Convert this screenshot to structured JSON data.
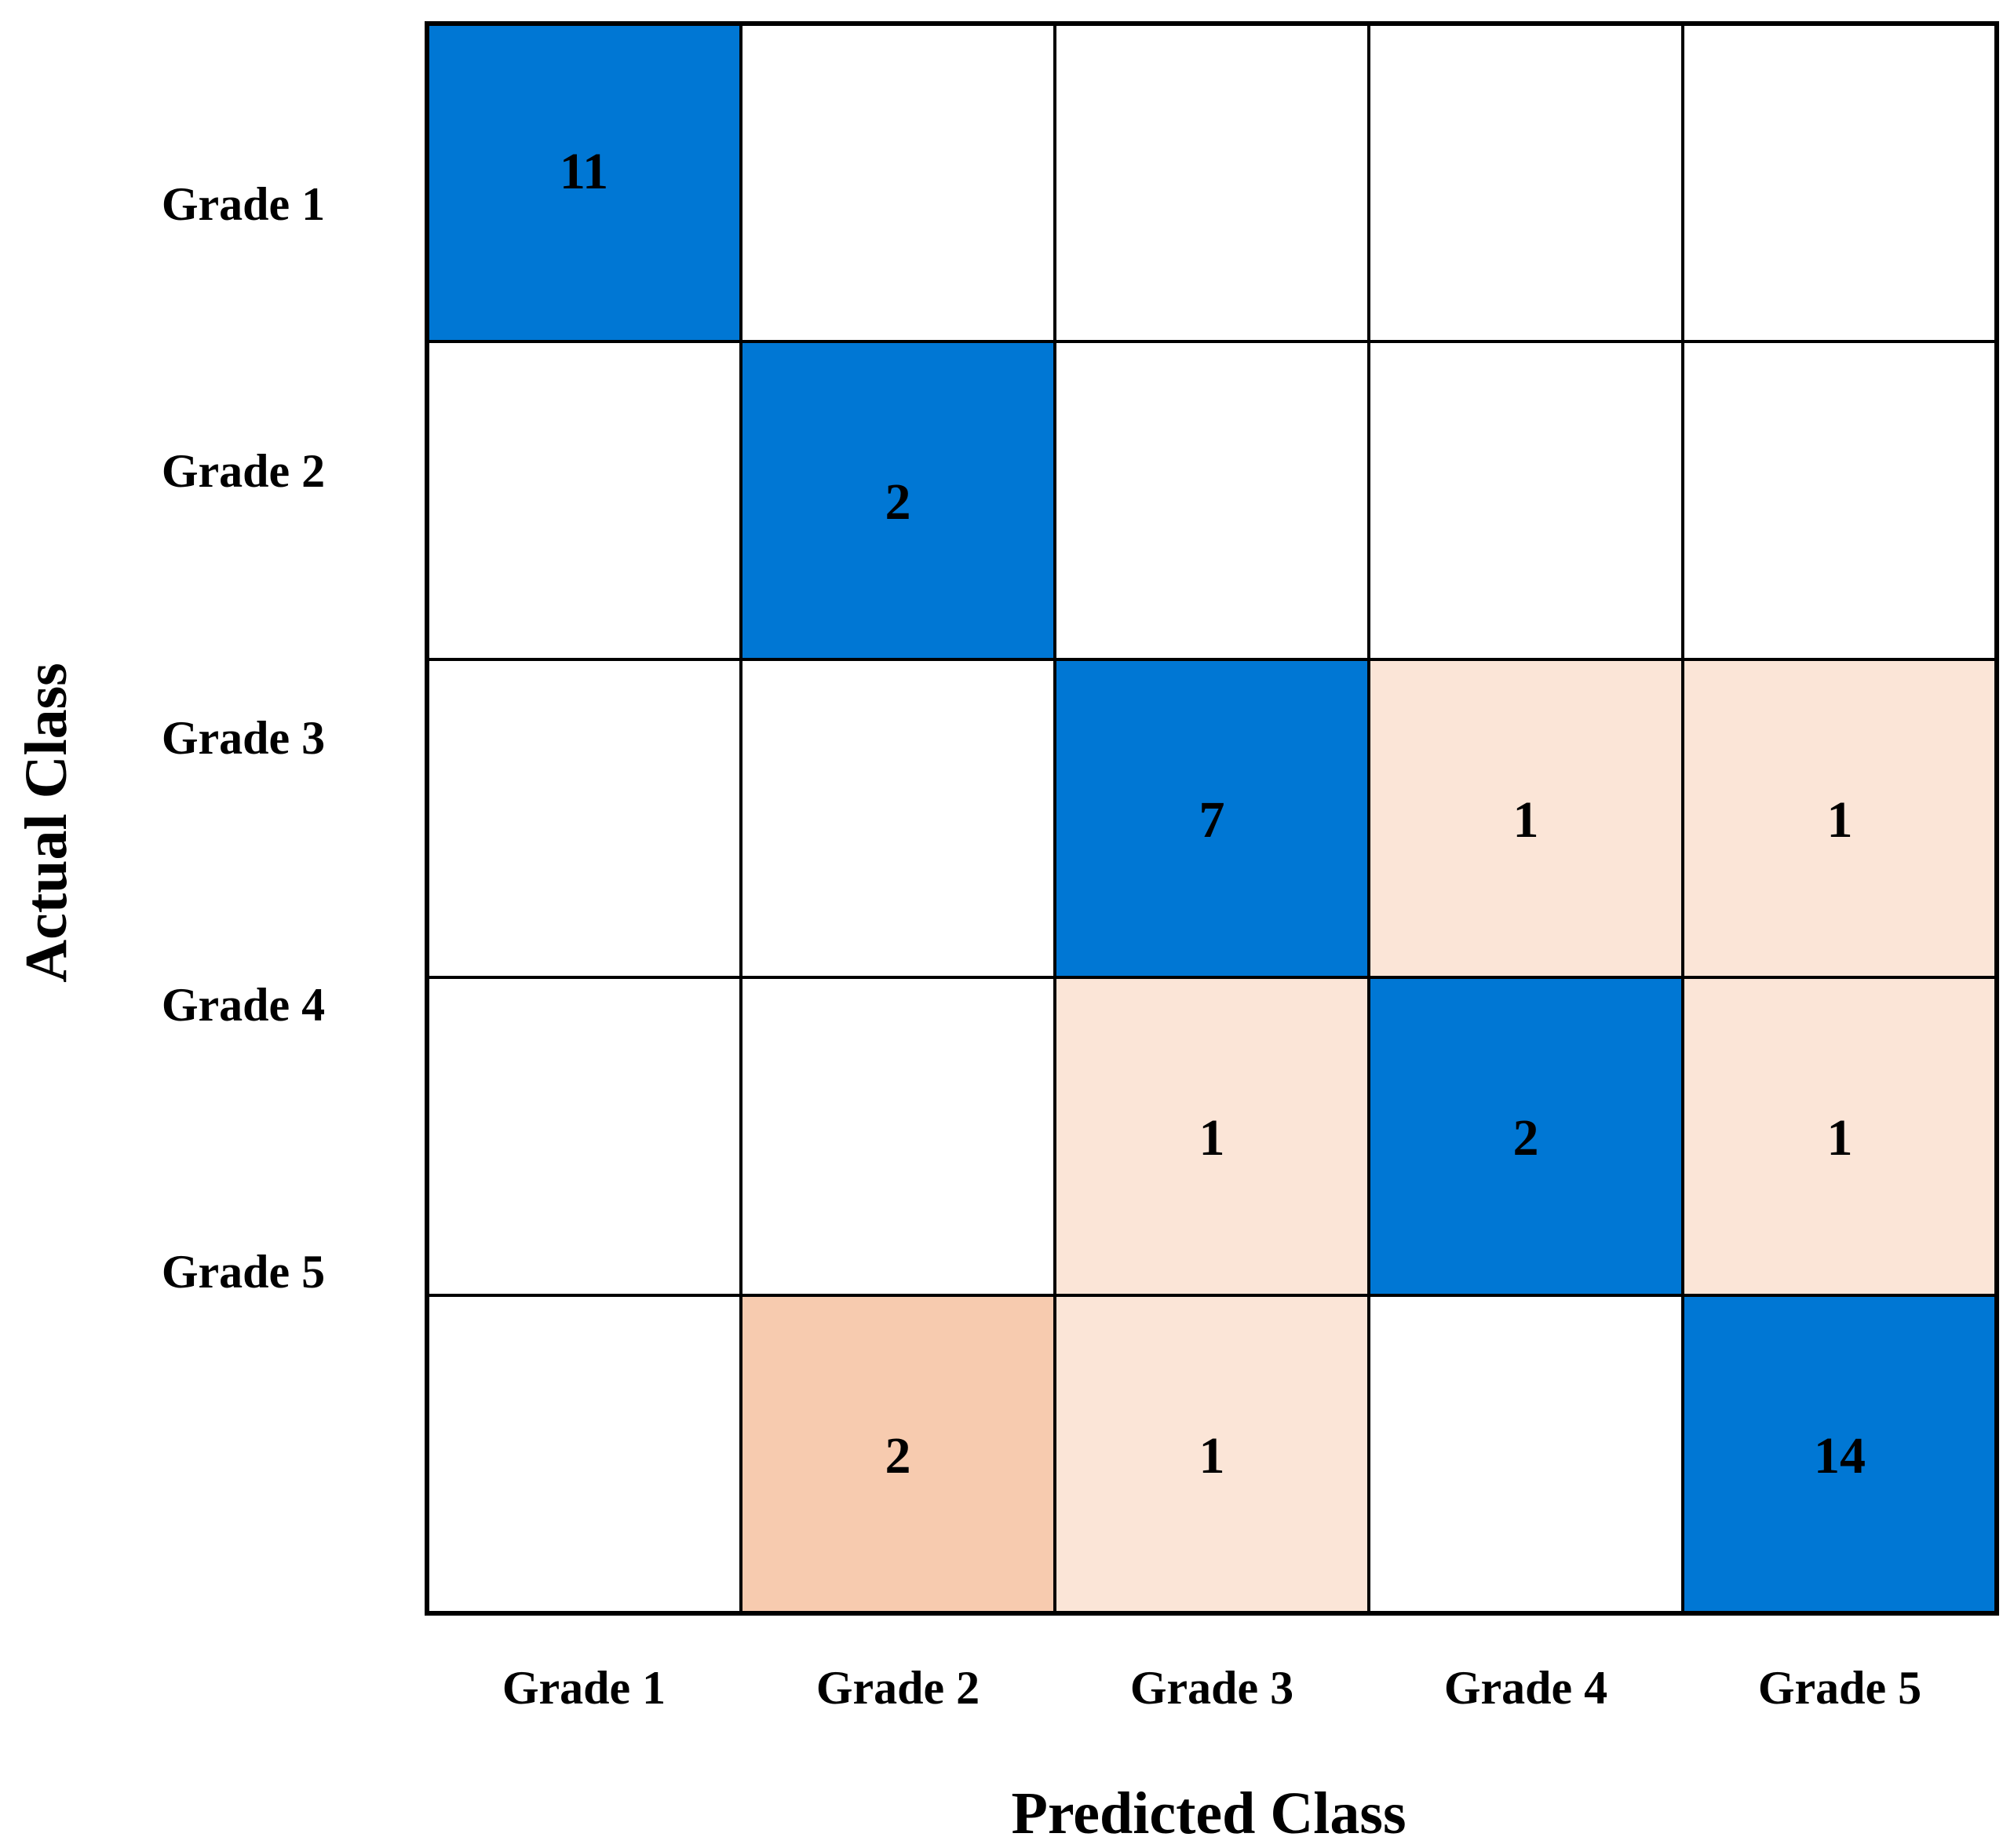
{
  "chart_data": {
    "type": "heatmap",
    "title": "",
    "xlabel": "Predicted Class",
    "ylabel": "Actual Class",
    "x_categories": [
      "Grade 1",
      "Grade 2",
      "Grade 3",
      "Grade 4",
      "Grade 5"
    ],
    "y_categories": [
      "Grade 1",
      "Grade 2",
      "Grade 3",
      "Grade 4",
      "Grade 5"
    ],
    "matrix": [
      [
        11,
        null,
        null,
        null,
        null
      ],
      [
        null,
        2,
        null,
        null,
        null
      ],
      [
        null,
        null,
        7,
        1,
        1
      ],
      [
        null,
        null,
        1,
        2,
        1
      ],
      [
        null,
        2,
        1,
        null,
        14
      ]
    ],
    "colors": {
      "diagonal": "#0077d4",
      "off_diagonal_1": "#fbe5d7",
      "off_diagonal_2": "#f7cbaf",
      "empty": "#ffffff",
      "border": "#000000"
    },
    "grid": true,
    "legend": "none"
  }
}
